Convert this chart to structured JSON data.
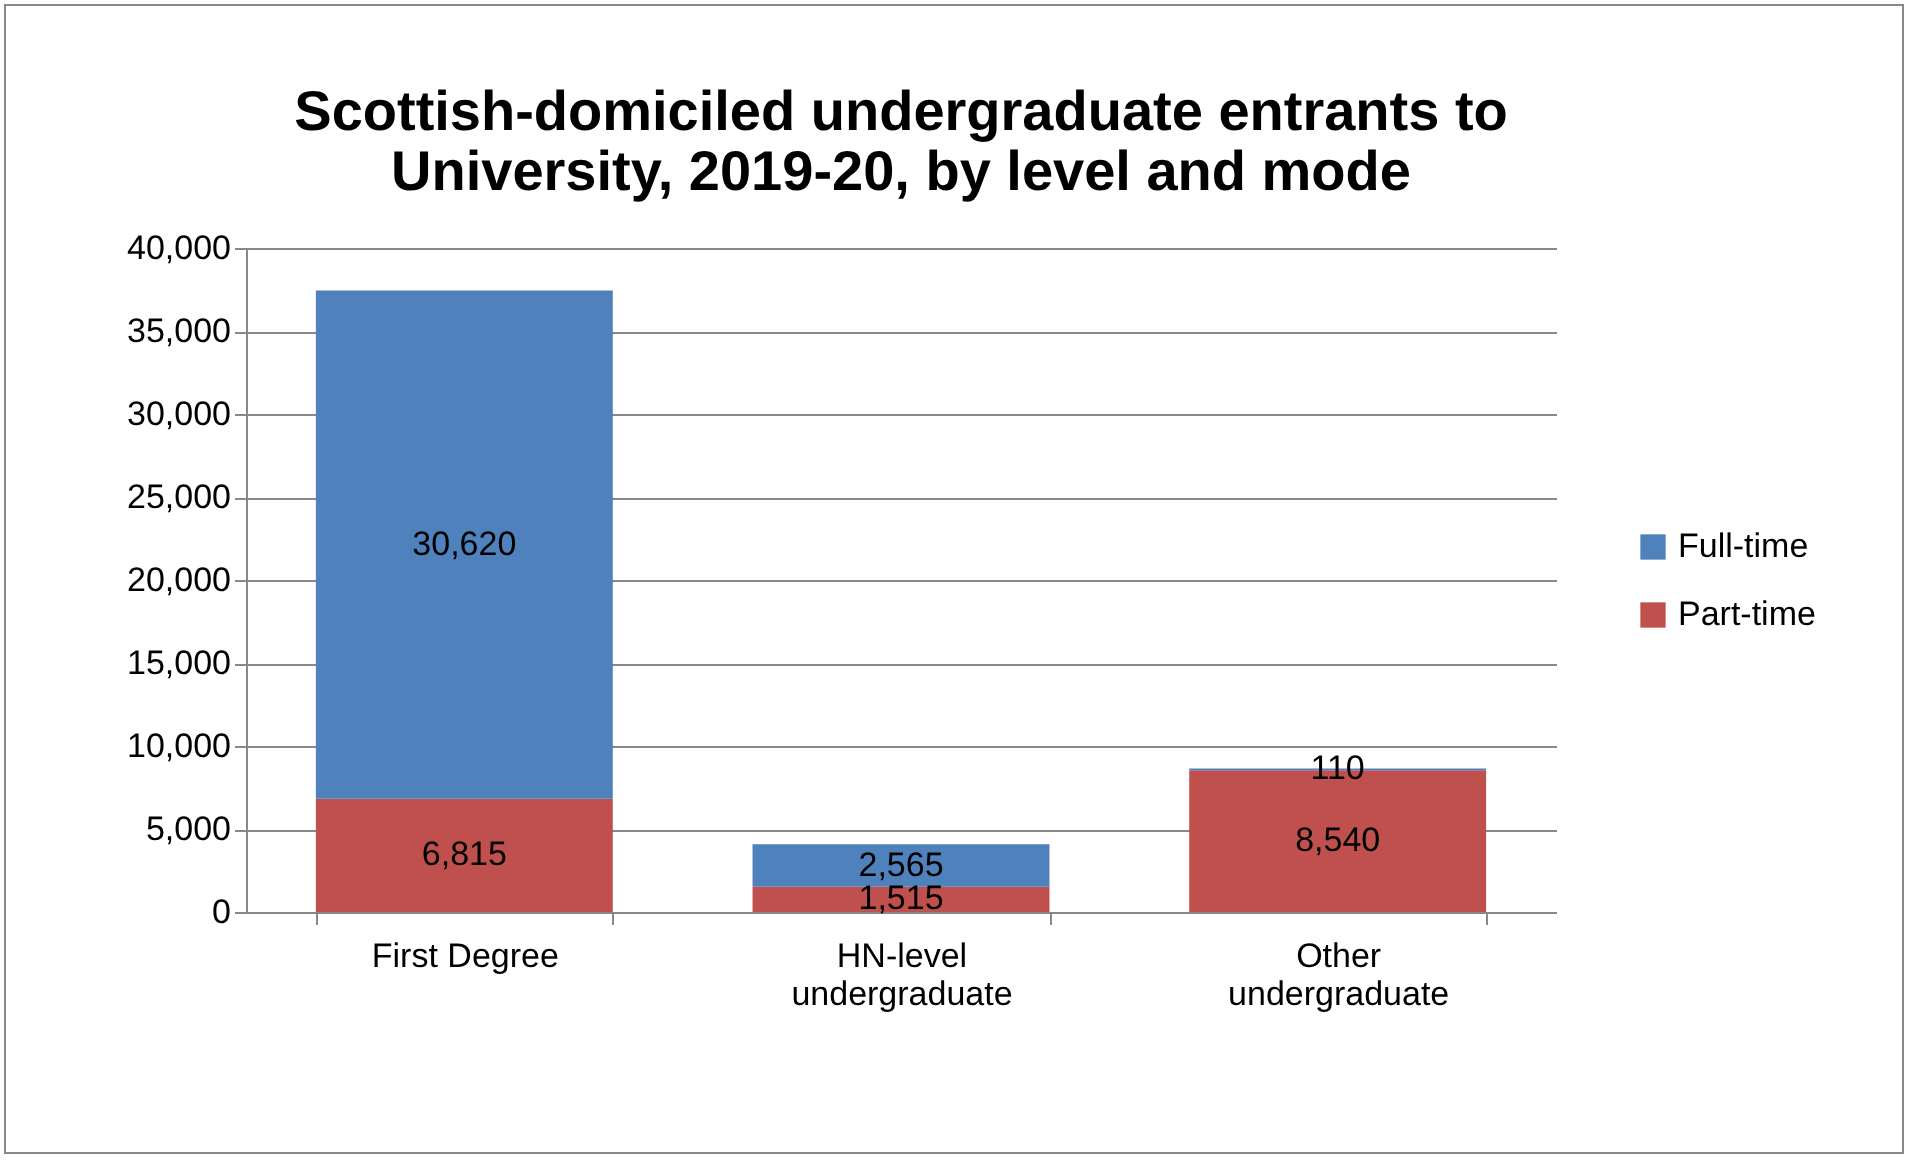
{
  "chart_data": {
    "type": "bar",
    "title": "Scottish-domiciled undergraduate entrants to University, 2019-20, by level and mode",
    "categories": [
      "First Degree",
      "HN-level undergraduate",
      "Other undergraduate"
    ],
    "stacked": true,
    "series": [
      {
        "name": "Part-time",
        "color": "#c0504d",
        "values": [
          6815,
          1515,
          8540
        ],
        "value_labels": [
          "6,815",
          "1,515",
          "8,540"
        ]
      },
      {
        "name": "Full-time",
        "color": "#4f81bd",
        "values": [
          30620,
          2565,
          110
        ],
        "value_labels": [
          "30,620",
          "2,565",
          "110"
        ]
      }
    ],
    "ylim": [
      0,
      40000
    ],
    "yticks": [
      {
        "value": 0,
        "label": "0"
      },
      {
        "value": 5000,
        "label": "5,000"
      },
      {
        "value": 10000,
        "label": "10,000"
      },
      {
        "value": 15000,
        "label": "15,000"
      },
      {
        "value": 20000,
        "label": "20,000"
      },
      {
        "value": 25000,
        "label": "25,000"
      },
      {
        "value": 30000,
        "label": "30,000"
      },
      {
        "value": 35000,
        "label": "35,000"
      },
      {
        "value": 40000,
        "label": "40,000"
      }
    ],
    "grid": "y",
    "legend": "right"
  }
}
